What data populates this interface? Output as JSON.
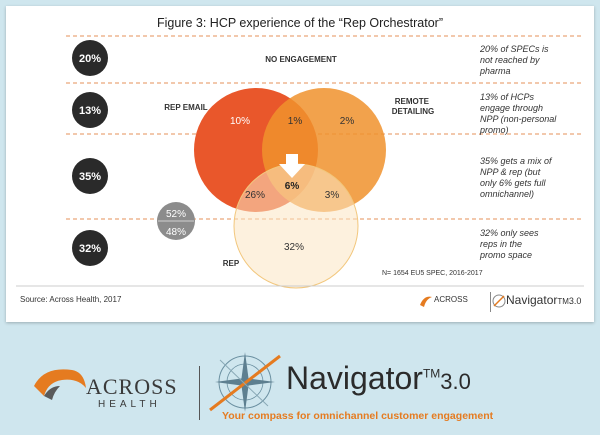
{
  "figure": {
    "title": "Figure 3: HCP experience of the “Rep Orchestrator”",
    "source": "Source: Across Health, 2017",
    "sample": "N= 1654 EU5 SPEC, 2016-2017"
  },
  "rows": [
    {
      "percent": "20%",
      "label": "NO ENGAGEMENT",
      "note": [
        "20% of SPECs is",
        "not reached by",
        "pharma"
      ]
    },
    {
      "percent": "13%",
      "label": "",
      "note": [
        "13% of HCPs",
        "engage through",
        "NPP (non-personal",
        "promo)"
      ]
    },
    {
      "percent": "35%",
      "label": "",
      "note": [
        "35% gets a mix of",
        "NPP & rep (but",
        "only 6% gets full",
        "omnichannel)"
      ]
    },
    {
      "percent": "32%",
      "label": "",
      "note": [
        "32% only sees",
        "reps in the",
        "promo space"
      ]
    }
  ],
  "chart_data": {
    "type": "venn",
    "sets": [
      {
        "name": "REP EMAIL",
        "only": "10%",
        "color": "#e9572b"
      },
      {
        "name": "REMOTE DETAILING",
        "only": "2%",
        "color": "#f0922d"
      },
      {
        "name": "REP",
        "only": "32%",
        "color": "#f5d59a"
      }
    ],
    "intersections": [
      {
        "sets": [
          "REP EMAIL",
          "REMOTE DETAILING"
        ],
        "value": "1%"
      },
      {
        "sets": [
          "REP EMAIL",
          "REP"
        ],
        "value": "26%"
      },
      {
        "sets": [
          "REMOTE DETAILING",
          "REP"
        ],
        "value": "3%"
      },
      {
        "sets": [
          "REP EMAIL",
          "REMOTE DETAILING",
          "REP"
        ],
        "value": "6%"
      }
    ],
    "rep_split": [
      "52%",
      "48%"
    ]
  },
  "logos": {
    "across": "ACROSS",
    "health": "HEALTH",
    "navigator": "Navigator",
    "tm": "TM",
    "version": "3.0",
    "tagline": "Your compass for omnichannel customer engagement"
  },
  "colors": {
    "background": "#cfe6ee",
    "dark_circle": "#2a2a2a",
    "dash_line": "#e4925a",
    "accent_orange": "#e57b20"
  }
}
